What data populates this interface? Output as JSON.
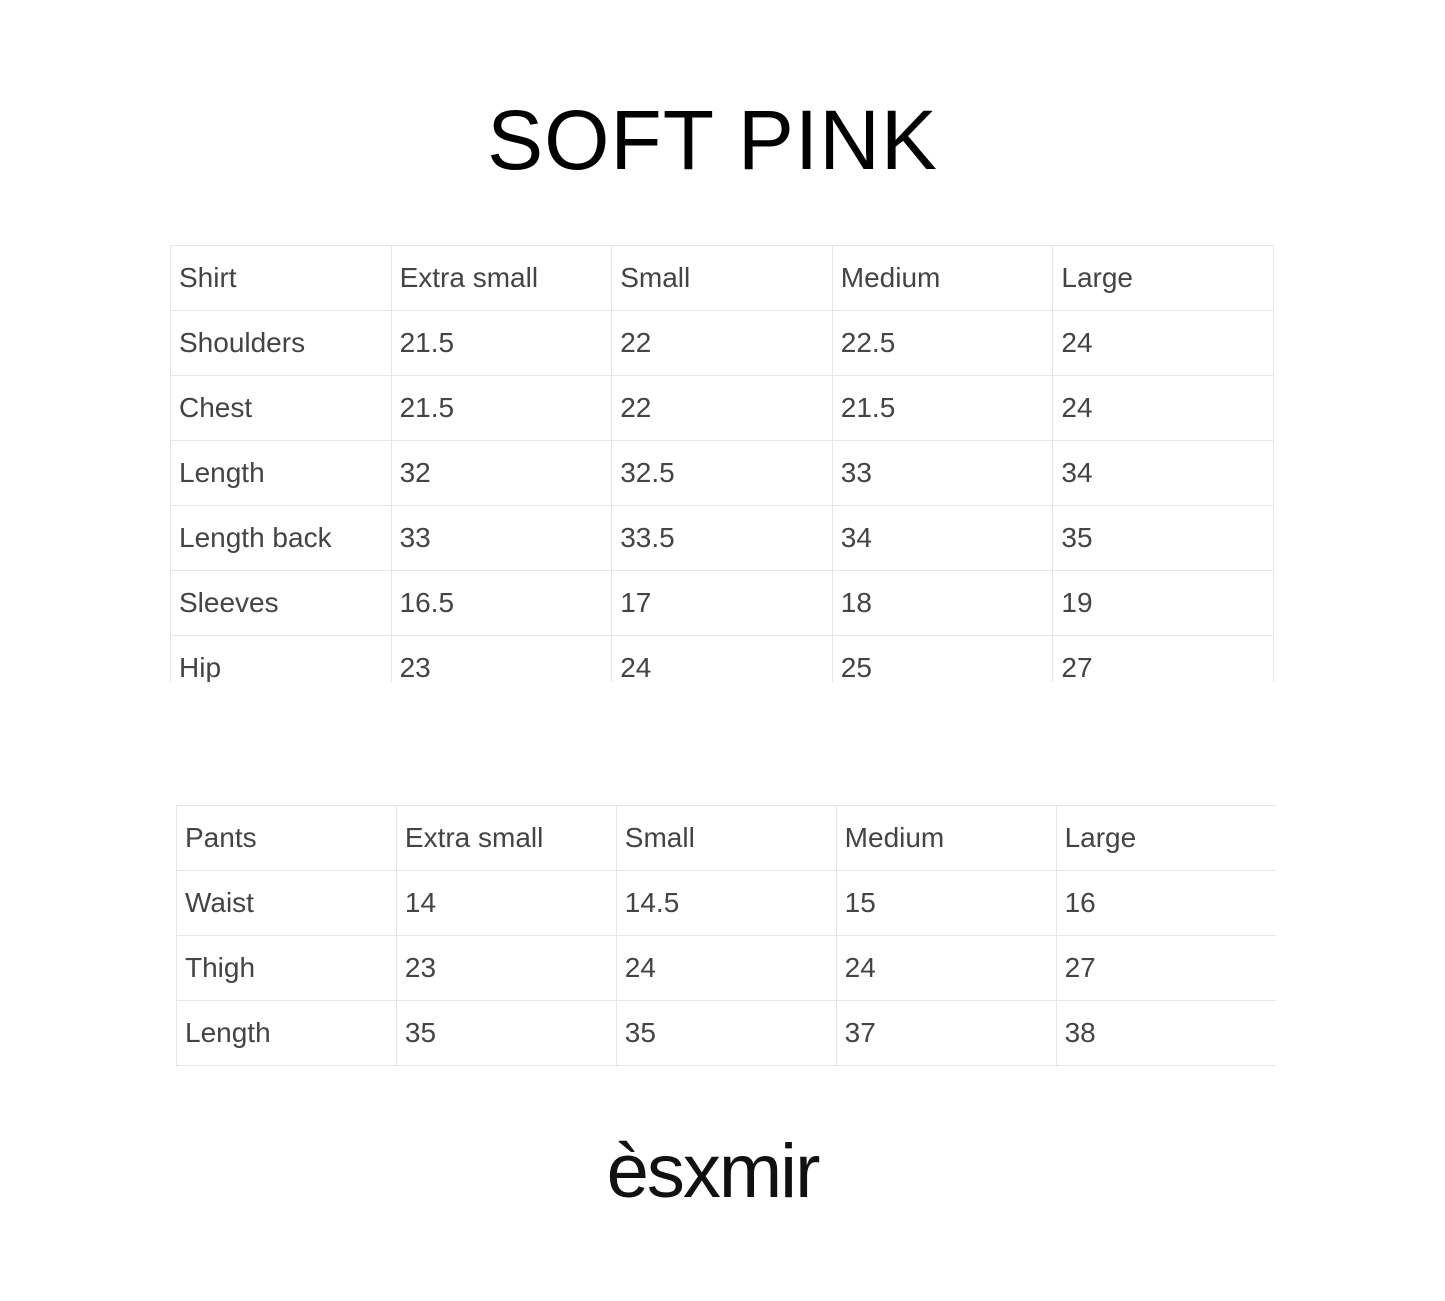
{
  "title": "SOFT PINK",
  "shirt_table": {
    "header": [
      "Shirt",
      "Extra small",
      "Small",
      "Medium",
      "Large"
    ],
    "rows": [
      [
        "Shoulders",
        "21.5",
        "22",
        "22.5",
        "24"
      ],
      [
        "Chest",
        "21.5",
        "22",
        "21.5",
        "24"
      ],
      [
        "Length",
        "32",
        "32.5",
        "33",
        "34"
      ],
      [
        "Length back",
        "33",
        "33.5",
        "34",
        "35"
      ],
      [
        "Sleeves",
        "16.5",
        "17",
        "18",
        "19"
      ],
      [
        "Hip",
        "23",
        "24",
        "25",
        "27"
      ]
    ]
  },
  "pants_table": {
    "header": [
      "Pants",
      "Extra small",
      "Small",
      "Medium",
      "Large"
    ],
    "rows": [
      [
        "Waist",
        "14",
        "14.5",
        "15",
        "16"
      ],
      [
        "Thigh",
        "23",
        "24",
        "24",
        "27"
      ],
      [
        "Length",
        "35",
        "35",
        "37",
        "38"
      ]
    ]
  },
  "brand": "èsxmir"
}
